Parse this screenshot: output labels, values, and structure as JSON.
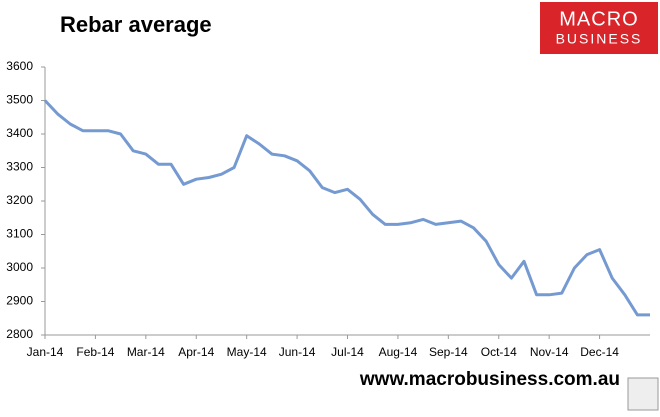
{
  "chart_data": {
    "type": "line",
    "title": "Rebar average",
    "categories": [
      "Jan-14",
      null,
      null,
      null,
      "Feb-14",
      null,
      null,
      null,
      "Mar-14",
      null,
      null,
      null,
      "Apr-14",
      null,
      null,
      null,
      "May-14",
      null,
      null,
      null,
      "Jun-14",
      null,
      null,
      null,
      "Jul-14",
      null,
      null,
      null,
      "Aug-14",
      null,
      null,
      null,
      "Sep-14",
      null,
      null,
      null,
      "Oct-14",
      null,
      null,
      null,
      "Nov-14",
      null,
      null,
      null,
      "Dec-14",
      null,
      null,
      null,
      null
    ],
    "values": [
      3500,
      3460,
      3430,
      3410,
      3410,
      3410,
      3400,
      3350,
      3340,
      3310,
      3310,
      3250,
      3265,
      3270,
      3280,
      3300,
      3395,
      3370,
      3340,
      3335,
      3320,
      3290,
      3240,
      3225,
      3235,
      3205,
      3160,
      3130,
      3130,
      3135,
      3145,
      3130,
      3135,
      3140,
      3120,
      3080,
      3010,
      2970,
      3020,
      2920,
      2920,
      2925,
      3000,
      3040,
      3055,
      2970,
      2920,
      2860,
      2860
    ],
    "color": "#759ad2",
    "ylim": [
      2800,
      3600
    ],
    "yticks": [
      2800,
      2900,
      3000,
      3100,
      3200,
      3300,
      3400,
      3500,
      3600
    ],
    "grid": false
  },
  "branding": {
    "logo_top": "MACRO",
    "logo_bottom": "BUSINESS",
    "url": "www.macrobusiness.com.au"
  }
}
